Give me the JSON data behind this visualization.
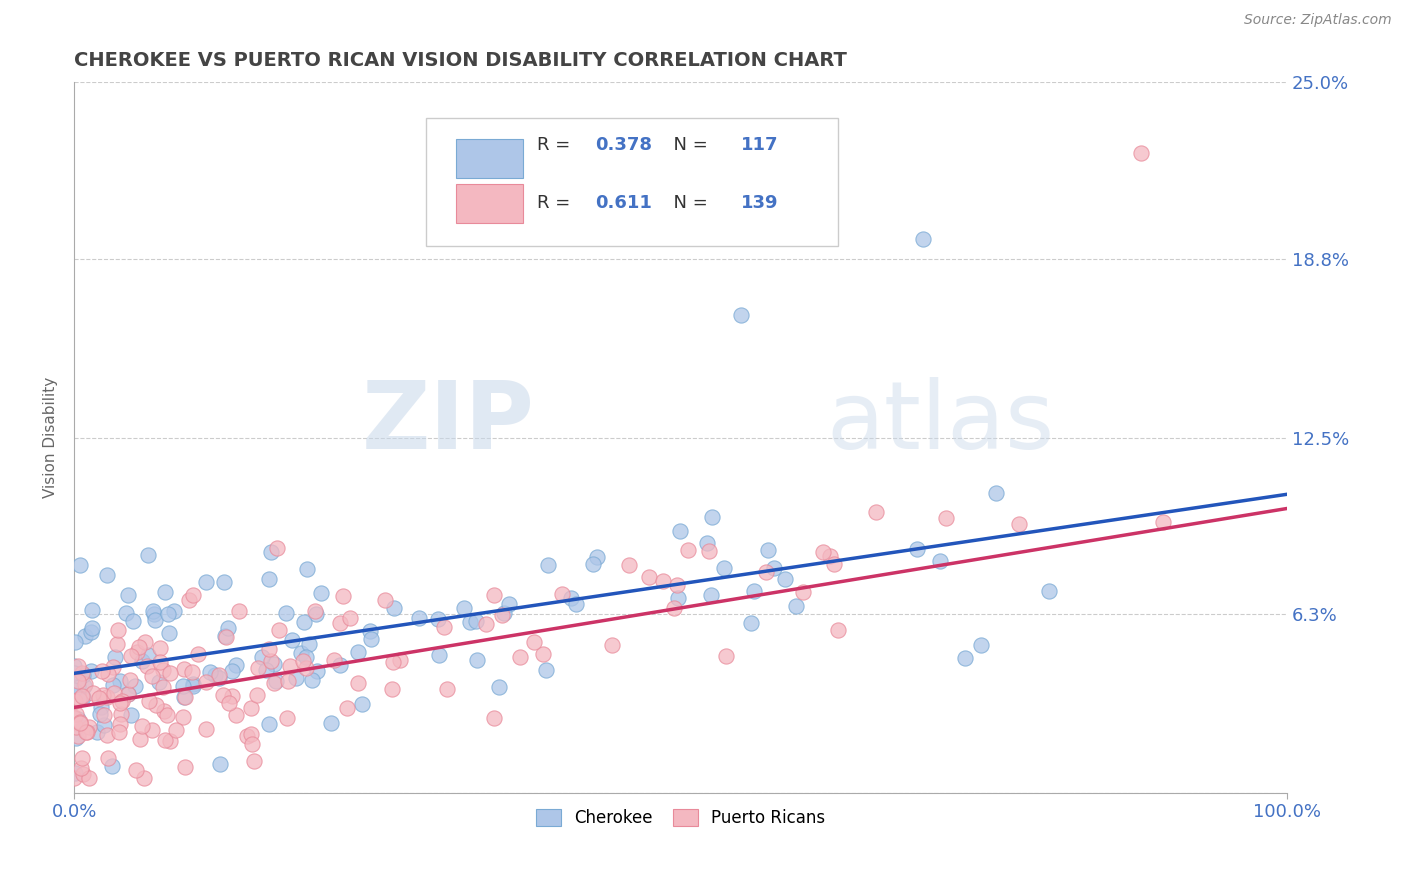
{
  "title": "CHEROKEE VS PUERTO RICAN VISION DISABILITY CORRELATION CHART",
  "source": "Source: ZipAtlas.com",
  "ylabel": "Vision Disability",
  "xlim": [
    0,
    100
  ],
  "ylim": [
    0,
    25
  ],
  "ytick_vals": [
    0,
    6.3,
    12.5,
    18.8,
    25.0
  ],
  "ytick_labels": [
    "",
    "6.3%",
    "12.5%",
    "18.8%",
    "25.0%"
  ],
  "xtick_labels": [
    "0.0%",
    "100.0%"
  ],
  "cherokee_R": 0.378,
  "cherokee_N": 117,
  "puerto_rican_R": 0.611,
  "puerto_rican_N": 139,
  "cherokee_color": "#aec6e8",
  "cherokee_edge_color": "#7aaad4",
  "puerto_rican_color": "#f4b8c1",
  "puerto_rican_edge_color": "#e88a9a",
  "cherokee_line_color": "#2255bb",
  "puerto_rican_line_color": "#cc3366",
  "background_color": "#ffffff",
  "grid_color": "#cccccc",
  "watermark_zip": "ZIP",
  "watermark_atlas": "atlas",
  "legend_labels": [
    "Cherokee",
    "Puerto Ricans"
  ],
  "title_color": "#444444",
  "source_color": "#888888",
  "axis_label_color": "#4472c4",
  "ylabel_color": "#666666",
  "cherokee_line_start_y": 4.2,
  "cherokee_line_end_y": 10.5,
  "puerto_rican_line_start_y": 3.0,
  "puerto_rican_line_end_y": 10.0
}
